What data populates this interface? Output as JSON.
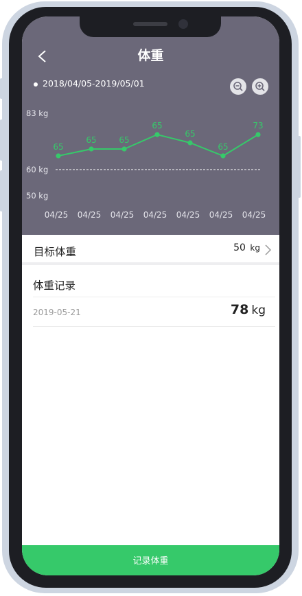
{
  "header": {
    "title": "体重",
    "date_range": "2018/04/05-2019/05/01"
  },
  "colors": {
    "header_bg": "#6b6879",
    "accent": "#36c96a",
    "line": "#36c96a"
  },
  "icons": {
    "back": "chevron-left-icon",
    "zoom_out": "zoom-out-icon",
    "zoom_in": "zoom-in-icon",
    "chevron": "chevron-right-icon"
  },
  "chart_data": {
    "type": "line",
    "categories": [
      "04/25",
      "04/25",
      "04/25",
      "04/25",
      "04/25",
      "04/25",
      "04/25"
    ],
    "series": [
      {
        "values": [
          65,
          65,
          65,
          65,
          65,
          65,
          73
        ]
      }
    ],
    "y_tick_labels": [
      "83 kg",
      "60 kg",
      "50 kg"
    ],
    "reference_line": {
      "value": 60,
      "style": "dashed"
    },
    "grid": false,
    "legend": "none"
  },
  "target": {
    "label": "目标体重",
    "value": "50",
    "unit": "kg"
  },
  "records": {
    "title": "体重记录",
    "items": [
      {
        "date": "2019-05-21",
        "value": "78",
        "unit": "kg"
      }
    ]
  },
  "footer": {
    "button_label": "记录体重"
  }
}
